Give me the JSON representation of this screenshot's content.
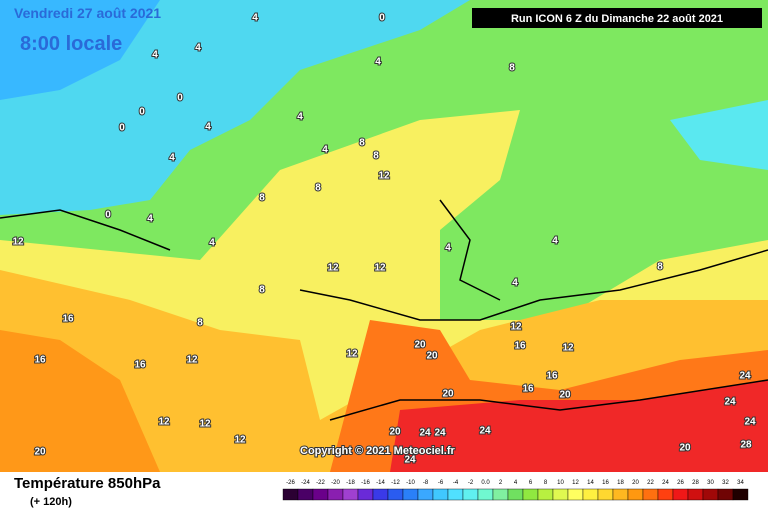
{
  "header": {
    "date": "Vendredi 27 août 2021",
    "time": "8:00 locale",
    "run": "Run ICON 6 Z du Dimanche 22 août 2021"
  },
  "copyright": "Copyright © 2021 Meteociel.fr",
  "footer": {
    "title": "Température 850hPa",
    "subtitle": "(+ 120h)"
  },
  "legend": {
    "labels": [
      "-26",
      "-24",
      "-22",
      "-20",
      "-18",
      "-16",
      "-14",
      "-12",
      "-10",
      "-8",
      "-6",
      "-4",
      "-2",
      "0.0",
      "2",
      "4",
      "6",
      "8",
      "10",
      "12",
      "14",
      "16",
      "18",
      "20",
      "22",
      "24",
      "26",
      "28",
      "30",
      "32",
      "34"
    ],
    "colors": [
      "#2b0033",
      "#4a0066",
      "#6a008a",
      "#8a1fb0",
      "#a040d0",
      "#6a2ad8",
      "#3a3ae8",
      "#2a5cf0",
      "#2a80f8",
      "#3aa8ff",
      "#40c8ff",
      "#50e0ff",
      "#60f0f0",
      "#70f8d0",
      "#80f0a0",
      "#70e060",
      "#90e840",
      "#b8f040",
      "#e0f850",
      "#ffff60",
      "#fff040",
      "#ffd830",
      "#ffb820",
      "#ff9810",
      "#ff7010",
      "#ff4010",
      "#f01818",
      "#d01010",
      "#a00808",
      "#700404",
      "#200000"
    ]
  },
  "contour_labels": [
    4,
    0,
    4,
    4,
    4,
    8,
    0,
    0,
    0,
    4,
    4,
    8,
    4,
    4,
    8,
    12,
    8,
    8,
    0,
    4,
    4,
    12,
    4,
    4,
    12,
    12,
    4,
    8,
    8,
    16,
    8,
    12,
    16,
    16,
    12,
    12,
    20,
    20,
    16,
    12,
    16,
    16,
    20,
    20,
    24,
    24,
    12,
    12,
    12,
    20,
    24,
    24,
    24,
    24,
    28,
    20,
    20,
    24
  ]
}
